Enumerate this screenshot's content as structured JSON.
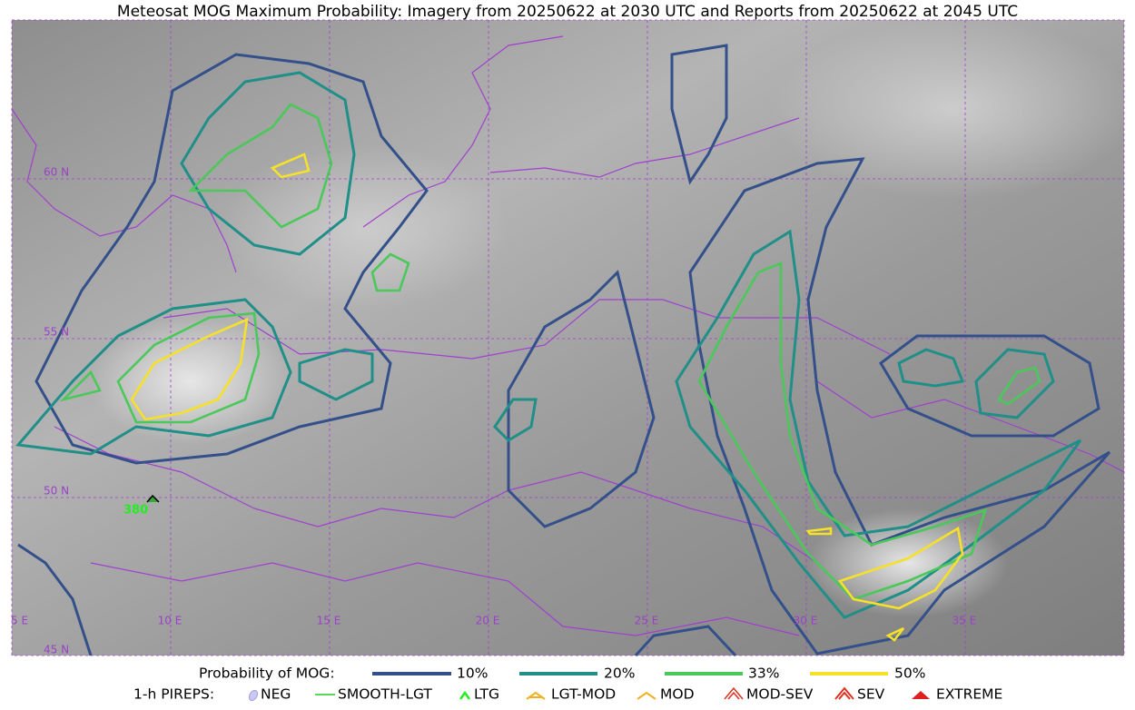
{
  "title": "Meteosat MOG Maximum Probability: Imagery from 20250622 at 2030 UTC and Reports from 20250622 at 2045 UTC",
  "map": {
    "longitude_labels": [
      "5 E",
      "10 E",
      "15 E",
      "20 E",
      "25 E",
      "30 E",
      "35 E"
    ],
    "latitude_labels": [
      "60 N",
      "55 N",
      "50 N",
      "45 N"
    ],
    "reports": [
      "380"
    ]
  },
  "legend": {
    "probability_label": "Probability of MOG:",
    "levels": [
      "10%",
      "20%",
      "33%",
      "50%"
    ],
    "pireps_label": "1-h PIREPS:",
    "pirep_types": [
      "NEG",
      "SMOOTH-LGT",
      "LTG",
      "LGT-MOD",
      "MOD",
      "MOD-SEV",
      "SEV",
      "EXTREME"
    ]
  }
}
